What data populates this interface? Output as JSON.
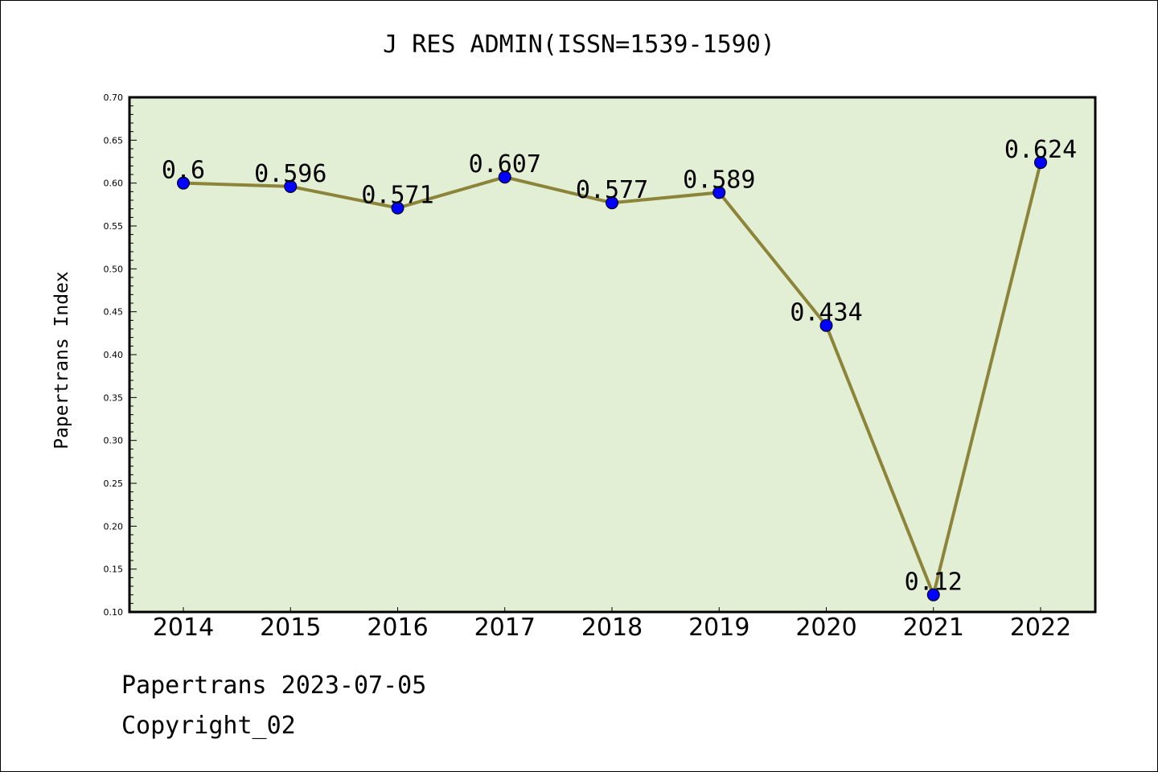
{
  "page": {
    "footer_line1": "Papertrans 2023-07-05",
    "footer_line2": "Copyright_02"
  },
  "chart_data": {
    "type": "line",
    "title": "J RES ADMIN(ISSN=1539-1590)",
    "xlabel": "",
    "ylabel": "Papertrans Index",
    "categories": [
      "2014",
      "2015",
      "2016",
      "2017",
      "2018",
      "2019",
      "2020",
      "2021",
      "2022"
    ],
    "series": [
      {
        "values": [
          0.6,
          0.596,
          0.571,
          0.607,
          0.577,
          0.589,
          0.434,
          0.12,
          0.624
        ],
        "data_labels": [
          "0.6",
          "0.596",
          "0.571",
          "0.607",
          "0.577",
          "0.589",
          "0.434",
          "0.12",
          "0.624"
        ]
      }
    ],
    "ylim": [
      0.1,
      0.7
    ],
    "yticks": [
      "0.10",
      "0.15",
      "0.20",
      "0.25",
      "0.30",
      "0.35",
      "0.40",
      "0.45",
      "0.50",
      "0.55",
      "0.60",
      "0.65",
      "0.70"
    ],
    "grid": false,
    "legend": "none",
    "colors": {
      "plot_background": "#e2efd5",
      "line": "#8b8439",
      "marker": "#0000ff",
      "frame": "#000000"
    }
  }
}
